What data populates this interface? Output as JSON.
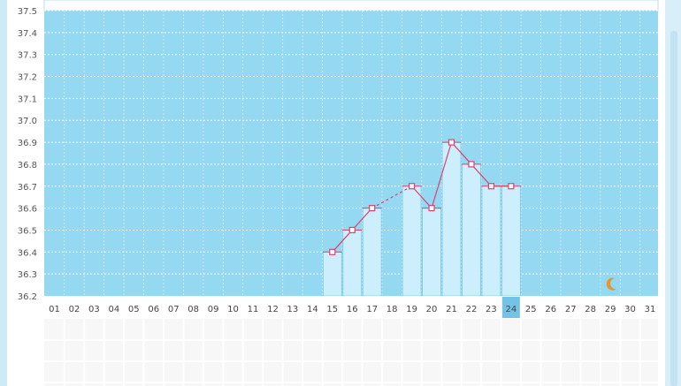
{
  "chart_data": {
    "type": "bar",
    "title": "",
    "xlabel": "",
    "ylabel": "",
    "ylim": [
      36.2,
      37.5
    ],
    "y_ticks": [
      "36.2",
      "36.3",
      "36.4",
      "36.5",
      "36.6",
      "36.7",
      "36.8",
      "36.9",
      "37.0",
      "37.1",
      "37.2",
      "37.3",
      "37.4",
      "37.5"
    ],
    "categories": [
      "01",
      "02",
      "03",
      "04",
      "05",
      "06",
      "07",
      "08",
      "09",
      "10",
      "11",
      "12",
      "13",
      "14",
      "15",
      "16",
      "17",
      "18",
      "19",
      "20",
      "21",
      "22",
      "23",
      "24",
      "25",
      "26",
      "27",
      "28",
      "29",
      "30",
      "31"
    ],
    "values": [
      null,
      null,
      null,
      null,
      null,
      null,
      null,
      null,
      null,
      null,
      null,
      null,
      null,
      null,
      36.4,
      36.5,
      36.6,
      null,
      36.7,
      36.6,
      36.9,
      36.8,
      36.7,
      36.7,
      null,
      null,
      null,
      null,
      null,
      null,
      null
    ],
    "highlight_day": "24",
    "moon_icon_day": "29",
    "grid": true,
    "colors": {
      "plot_bg": "#94d8f2",
      "bar_fill": "#cdeefc",
      "bar_stroke": "#7cc7e6",
      "line": "#d9436e",
      "highlight": "#74c3e6",
      "moon": "#e8962a"
    }
  }
}
